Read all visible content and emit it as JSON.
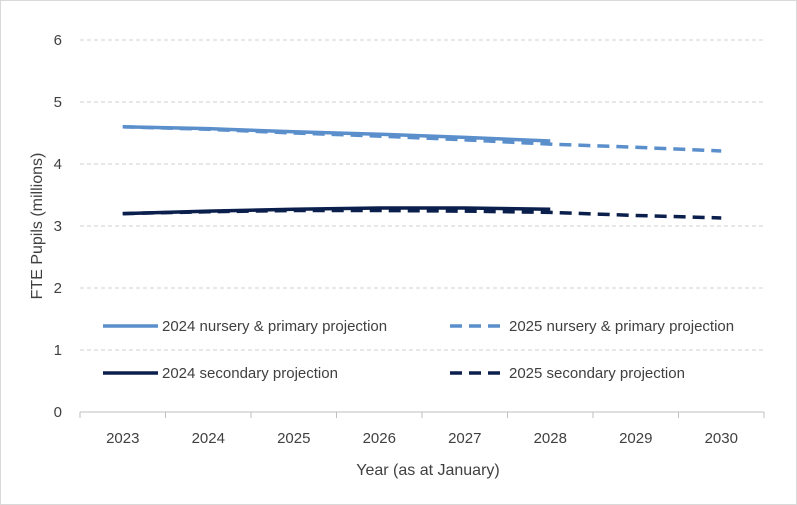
{
  "chart_data": {
    "type": "line",
    "title": "",
    "xlabel": "Year (as at January)",
    "ylabel": "FTE Pupils (millions)",
    "ylim": [
      0,
      6
    ],
    "yticks": [
      "0",
      "1",
      "2",
      "3",
      "4",
      "5",
      "6"
    ],
    "categories": [
      "2023",
      "2024",
      "2025",
      "2026",
      "2027",
      "2028",
      "2029",
      "2030"
    ],
    "grid": true,
    "legend_position": "inside-bottom",
    "series": [
      {
        "name": "2024 nursery & primary projection",
        "style": "solid",
        "color": "#5b8fcc",
        "x": [
          "2023",
          "2024",
          "2025",
          "2026",
          "2027",
          "2028"
        ],
        "values": [
          4.6,
          4.57,
          4.52,
          4.48,
          4.43,
          4.37
        ]
      },
      {
        "name": "2025 nursery & primary projection",
        "style": "dashed",
        "color": "#5b8fcc",
        "x": [
          "2023",
          "2024",
          "2025",
          "2026",
          "2027",
          "2028",
          "2029",
          "2030"
        ],
        "values": [
          4.6,
          4.56,
          4.5,
          4.45,
          4.39,
          4.32,
          4.27,
          4.21
        ]
      },
      {
        "name": "2024 secondary projection",
        "style": "solid",
        "color": "#0b1f4d",
        "x": [
          "2023",
          "2024",
          "2025",
          "2026",
          "2027",
          "2028"
        ],
        "values": [
          3.2,
          3.24,
          3.27,
          3.29,
          3.29,
          3.27
        ]
      },
      {
        "name": "2025 secondary projection",
        "style": "dashed",
        "color": "#0b1f4d",
        "x": [
          "2023",
          "2024",
          "2025",
          "2026",
          "2027",
          "2028",
          "2029",
          "2030"
        ],
        "values": [
          3.2,
          3.23,
          3.25,
          3.25,
          3.24,
          3.22,
          3.17,
          3.13
        ]
      }
    ]
  }
}
